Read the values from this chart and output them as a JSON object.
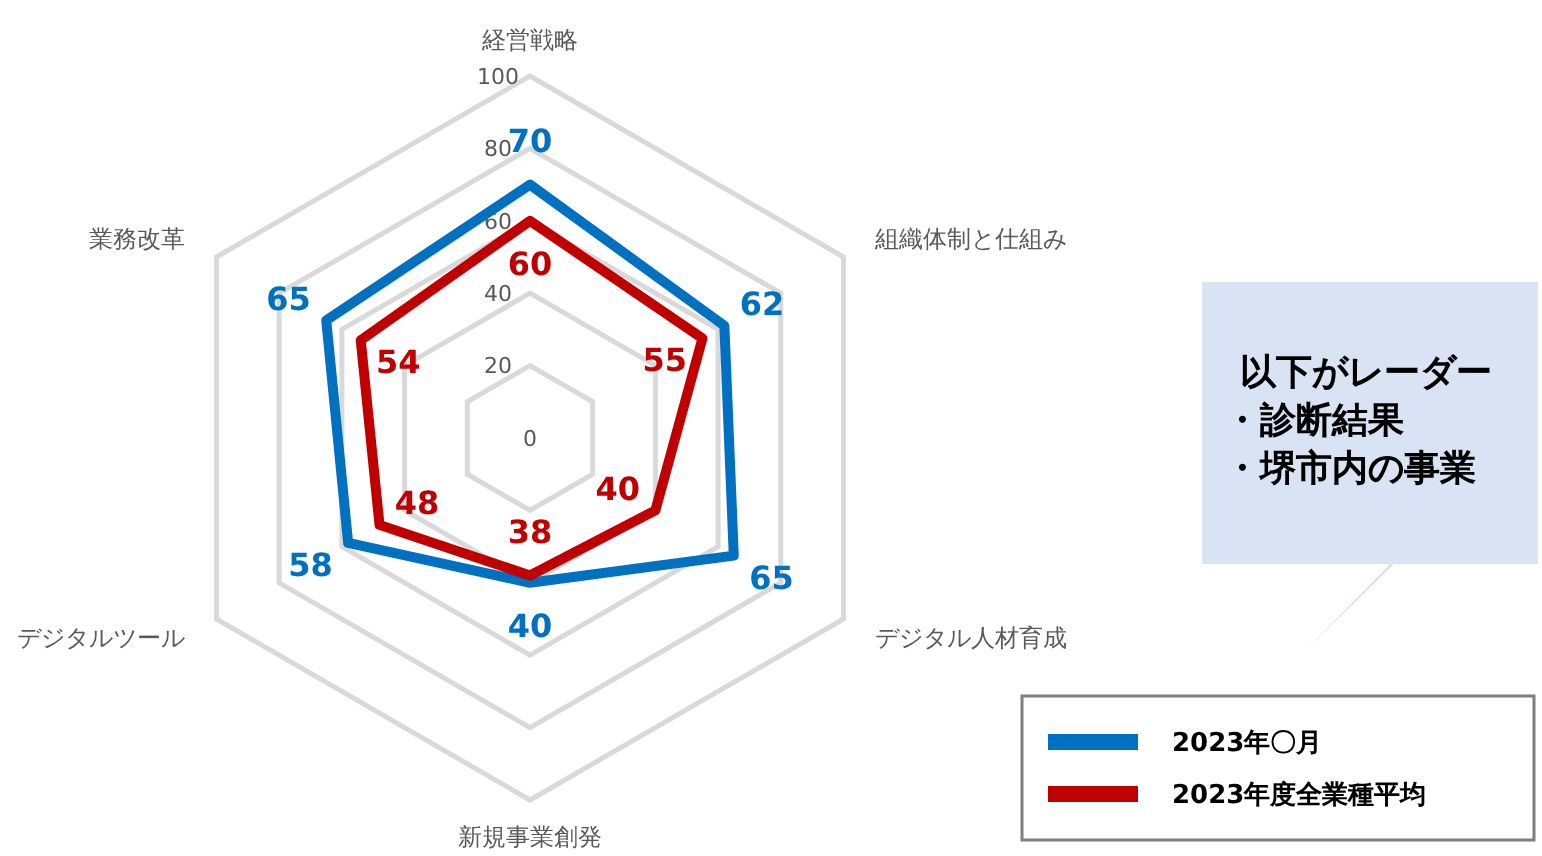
{
  "chart_data": {
    "type": "radar",
    "categories": [
      "経営戦略",
      "組織体制と仕組み",
      "デジタル人材育成",
      "新規事業創発",
      "デジタルツール",
      "業務改革"
    ],
    "series": [
      {
        "name": "2023年〇月",
        "color": "#0070c0",
        "values": [
          70,
          62,
          65,
          40,
          58,
          65
        ]
      },
      {
        "name": "2023年度全業種平均",
        "color": "#c00000",
        "values": [
          60,
          55,
          40,
          38,
          48,
          54
        ]
      }
    ],
    "ylim": [
      0,
      100
    ],
    "yticks": [
      0,
      20,
      40,
      60,
      80,
      100
    ],
    "grid": true,
    "data_labels": true,
    "legend": "bottom right",
    "annotations": [
      "以下がレーダー",
      "・診断結果",
      "・堺市内の事業"
    ]
  }
}
